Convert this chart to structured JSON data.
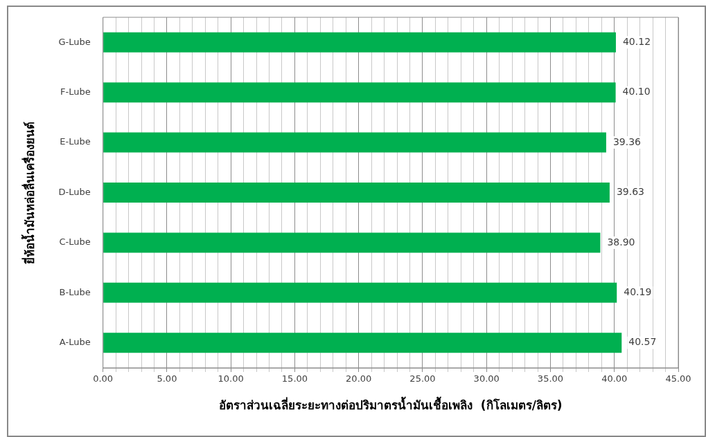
{
  "chart_data": {
    "type": "bar",
    "orientation": "horizontal",
    "xlabel": "อัตราส่วนเฉลี่ยระยะทางต่อปริมาตรน้ำมันเชื้อเพลิง  (กิโลเมตร/ลิตร)",
    "ylabel": "ยี่ห้อน้ำมันหล่อลื่นเครื่องยนต์",
    "categories": [
      "G-Lube",
      "F-Lube",
      "E-Lube",
      "D-Lube",
      "C-Lube",
      "B-Lube",
      "A-Lube"
    ],
    "values": [
      40.12,
      40.1,
      39.36,
      39.63,
      38.9,
      40.19,
      40.57
    ],
    "value_labels": [
      "40.12",
      "40.10",
      "39.36",
      "39.63",
      "38.90",
      "40.19",
      "40.57"
    ],
    "color": "#00b050",
    "xlim": [
      0,
      45
    ],
    "xticks": [
      {
        "value": 0,
        "label": "0.00"
      },
      {
        "value": 1,
        "label": null
      },
      {
        "value": 2,
        "label": null
      },
      {
        "value": 3,
        "label": null
      },
      {
        "value": 4,
        "label": null
      },
      {
        "value": 5,
        "label": "5.00"
      },
      {
        "value": 6,
        "label": null
      },
      {
        "value": 7,
        "label": null
      },
      {
        "value": 8,
        "label": null
      },
      {
        "value": 9,
        "label": null
      },
      {
        "value": 10,
        "label": "10.00"
      },
      {
        "value": 11,
        "label": null
      },
      {
        "value": 12,
        "label": null
      },
      {
        "value": 13,
        "label": null
      },
      {
        "value": 14,
        "label": null
      },
      {
        "value": 15,
        "label": "15.00"
      },
      {
        "value": 16,
        "label": null
      },
      {
        "value": 17,
        "label": null
      },
      {
        "value": 18,
        "label": null
      },
      {
        "value": 19,
        "label": null
      },
      {
        "value": 20,
        "label": "20.00"
      },
      {
        "value": 21,
        "label": null
      },
      {
        "value": 22,
        "label": null
      },
      {
        "value": 23,
        "label": null
      },
      {
        "value": 24,
        "label": null
      },
      {
        "value": 25,
        "label": "25.00"
      },
      {
        "value": 26,
        "label": null
      },
      {
        "value": 27,
        "label": null
      },
      {
        "value": 28,
        "label": null
      },
      {
        "value": 29,
        "label": null
      },
      {
        "value": 30,
        "label": "30.00"
      },
      {
        "value": 31,
        "label": null
      },
      {
        "value": 32,
        "label": null
      },
      {
        "value": 33,
        "label": null
      },
      {
        "value": 34,
        "label": null
      },
      {
        "value": 35,
        "label": "35.00"
      },
      {
        "value": 36,
        "label": null
      },
      {
        "value": 37,
        "label": null
      },
      {
        "value": 38,
        "label": null
      },
      {
        "value": 39,
        "label": null
      },
      {
        "value": 40,
        "label": "40.00"
      },
      {
        "value": 41,
        "label": null
      },
      {
        "value": 42,
        "label": null
      },
      {
        "value": 43,
        "label": null
      },
      {
        "value": 44,
        "label": null
      },
      {
        "value": 45,
        "label": "45.00"
      }
    ],
    "grid": "x",
    "legend": false
  }
}
